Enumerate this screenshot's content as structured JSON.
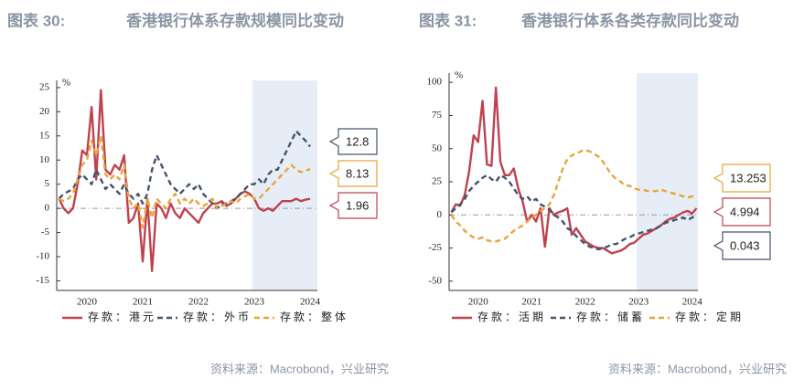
{
  "chart_data": [
    {
      "type": "line",
      "figure_label": "图表 30:",
      "title": "香港银行体系存款规模同比变动",
      "ylabel": "%",
      "source": "资料来源：Macrobond，兴业研究",
      "categories": [
        null,
        null,
        null,
        null,
        null,
        null,
        "2020",
        null,
        null,
        null,
        null,
        null,
        null,
        null,
        null,
        null,
        null,
        null,
        "2021",
        null,
        null,
        null,
        null,
        null,
        null,
        null,
        null,
        null,
        null,
        null,
        "2022",
        null,
        null,
        null,
        null,
        null,
        null,
        null,
        null,
        null,
        null,
        null,
        "2023",
        null,
        null,
        null,
        null,
        null,
        null,
        null,
        null,
        null,
        null,
        null,
        "2024"
      ],
      "ylim": [
        -17,
        26.5
      ],
      "yticks": [
        25,
        20,
        15,
        10,
        5,
        0,
        -5,
        -10,
        -15
      ],
      "series": [
        {
          "name": "存款：港元",
          "color": "#c0414f",
          "style": "solid",
          "values": [
            2,
            0,
            -1,
            0,
            5,
            12,
            11,
            21,
            6,
            24.5,
            8,
            7,
            9,
            8,
            11,
            -3,
            -2,
            1,
            -11,
            2,
            -13,
            1,
            0,
            -2,
            1,
            -1,
            -2,
            0,
            -1,
            -2,
            -3,
            -1,
            0,
            1,
            1,
            1.5,
            0.5,
            1,
            2,
            3,
            3.5,
            3,
            2,
            0,
            -0.5,
            0,
            -0.5,
            0.5,
            1.5,
            1.5,
            1.5,
            2,
            1.5,
            1.8,
            1.96
          ]
        },
        {
          "name": "存款：外币",
          "color": "#44546a",
          "style": "dashed",
          "values": [
            2,
            3,
            3.5,
            4,
            6,
            7,
            6,
            5,
            8,
            6,
            4,
            5,
            4,
            3,
            5,
            3,
            2,
            3,
            1,
            3,
            8,
            11,
            9,
            7,
            5,
            4,
            3,
            4,
            5,
            4,
            5,
            3,
            2,
            1,
            0,
            1,
            1,
            1.5,
            2,
            3,
            4,
            5,
            5,
            6,
            5,
            7,
            8,
            8,
            10,
            12,
            14,
            16,
            15,
            14,
            12.8
          ]
        },
        {
          "name": "存款：整体",
          "color": "#eaa43a",
          "style": "dashed",
          "values": [
            2,
            1.5,
            2,
            3,
            6,
            9,
            10,
            14,
            11,
            15,
            7,
            6,
            7,
            6,
            9,
            2,
            0,
            1,
            -4,
            2,
            -2,
            2,
            1,
            0,
            2,
            3,
            1,
            2,
            1,
            2,
            1,
            0.5,
            1,
            2,
            0,
            0.5,
            1,
            1.5,
            1,
            2,
            2.5,
            3,
            2,
            2,
            3,
            4,
            5,
            6,
            7,
            8,
            9,
            8,
            7.5,
            7.8,
            8.13
          ]
        }
      ]
    },
    {
      "type": "line",
      "figure_label": "图表 31:",
      "title": "香港银行体系各类存款同比变动",
      "ylabel": "%",
      "source": "资料来源：Macrobond，兴业研究",
      "categories": [
        null,
        null,
        null,
        null,
        null,
        null,
        "2020",
        null,
        null,
        null,
        null,
        null,
        null,
        null,
        null,
        null,
        null,
        null,
        "2021",
        null,
        null,
        null,
        null,
        null,
        null,
        null,
        null,
        null,
        null,
        null,
        "2022",
        null,
        null,
        null,
        null,
        null,
        null,
        null,
        null,
        null,
        null,
        null,
        "2023",
        null,
        null,
        null,
        null,
        null,
        null,
        null,
        null,
        null,
        null,
        null,
        "2024",
        null
      ],
      "ylim": [
        -57,
        107
      ],
      "yticks": [
        100,
        75,
        50,
        25,
        0,
        -25,
        -50
      ],
      "series": [
        {
          "name": "存款：活期",
          "color": "#c0414f",
          "style": "solid",
          "values": [
            2,
            8,
            7,
            15,
            33,
            60,
            55,
            86,
            38,
            37,
            96,
            40,
            30,
            30,
            35,
            20,
            10,
            -5,
            0,
            -5,
            5,
            -24,
            5,
            0,
            2,
            3,
            5,
            -15,
            -10,
            -15,
            -20,
            -22,
            -24,
            -25,
            -25,
            -27,
            -29,
            -28,
            -27,
            -25,
            -22,
            -21,
            -18,
            -15,
            -14,
            -12,
            -10,
            -8,
            -5,
            -3,
            -2,
            0,
            2,
            3,
            1,
            4.994
          ]
        },
        {
          "name": "存款：储蓄",
          "color": "#44546a",
          "style": "dashed",
          "values": [
            2,
            5,
            8,
            12,
            18,
            22,
            25,
            28,
            30,
            27,
            25,
            30,
            28,
            25,
            20,
            15,
            12,
            14,
            10,
            12,
            8,
            6,
            4,
            0,
            -2,
            -5,
            -10,
            -12,
            -16,
            -19,
            -22,
            -24,
            -25,
            -26,
            -25,
            -24,
            -22,
            -22,
            -20,
            -18,
            -17,
            -15,
            -14,
            -13,
            -12,
            -11,
            -10,
            -8,
            -6,
            -5,
            -4,
            -3,
            -2,
            -4,
            -2,
            0.043
          ]
        },
        {
          "name": "存款：定期",
          "color": "#eaa43a",
          "style": "dashed",
          "values": [
            0,
            -5,
            -8,
            -12,
            -15,
            -17,
            -18,
            -17,
            -19,
            -20,
            -20,
            -19,
            -18,
            -15,
            -12,
            -10,
            -8,
            -5,
            -2,
            0,
            3,
            5,
            8,
            15,
            25,
            35,
            42,
            45,
            46,
            48,
            49,
            48,
            46,
            44,
            40,
            35,
            30,
            27,
            25,
            22,
            22,
            20,
            19,
            19,
            18,
            18,
            18,
            19,
            18,
            17,
            16,
            15,
            14,
            13,
            14,
            13.253
          ]
        }
      ]
    }
  ]
}
